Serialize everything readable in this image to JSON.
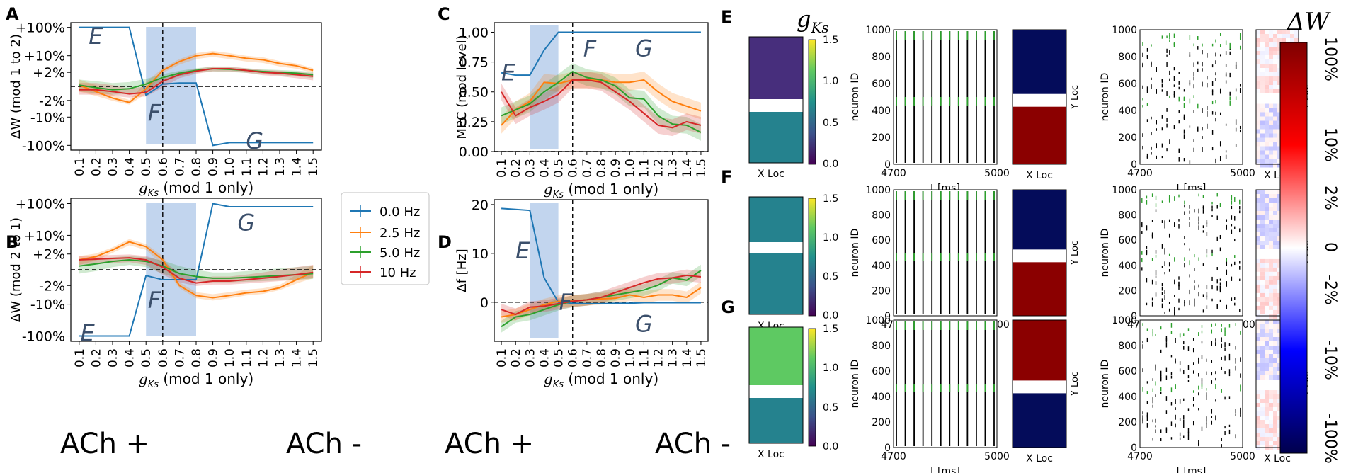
{
  "colors": {
    "s0": "#1f77b4",
    "s25": "#ff7f0e",
    "s5": "#2ca02c",
    "s10": "#d62728",
    "band": "#aec7e8",
    "ecolor": "#3b4f6b",
    "viridis_low": "#472e7c",
    "viridis_mid": "#25828e",
    "viridis_high": "#5ec962",
    "cold": "#040c5a",
    "hot": "#8b0000"
  },
  "legend": {
    "labels": [
      "0.0 Hz",
      "2.5 Hz",
      "5.0 Hz",
      "10 Hz"
    ]
  },
  "panels": {
    "A": "A",
    "B": "B",
    "C": "C",
    "D": "D",
    "E": "E",
    "F": "F",
    "G": "G"
  },
  "ach": {
    "plus": "ACh +",
    "minus": "ACh -"
  },
  "gks_label": {
    "sym": "g",
    "sub": "Ks",
    "tail": " (mod 1 only)"
  },
  "colorbar_gks": {
    "sym": "g",
    "sub": "Ks",
    "ticks": [
      "1.5",
      "1.0",
      "0.5",
      "0.0"
    ]
  },
  "colorbar_dw": {
    "title": "ΔW",
    "ticks": [
      "100%",
      "10%",
      "2%",
      "0",
      "-2%",
      "-10%",
      "-100%"
    ]
  },
  "raster": {
    "ylabel": "neuron ID",
    "xlabel": "t [ms]",
    "xticks": [
      "4700",
      "5000"
    ],
    "yticks": [
      "1000",
      "800",
      "600",
      "400",
      "200",
      "0"
    ]
  },
  "grid_labels": {
    "xloc": "X Loc",
    "yloc": "Y Loc"
  },
  "chart_data": [
    {
      "id": "A",
      "type": "line",
      "ylabel": "ΔW (mod 1 to 2)",
      "xlabel": "gKs (mod 1 only)",
      "yticks": [
        "+100%",
        "+10%",
        "+2%",
        "-2%",
        "-10%",
        "-100%"
      ],
      "x": [
        0.1,
        0.2,
        0.3,
        0.4,
        0.5,
        0.6,
        0.7,
        0.8,
        0.9,
        1.0,
        1.1,
        1.2,
        1.3,
        1.4,
        1.5
      ],
      "series": [
        {
          "name": "0.0 Hz",
          "values": [
            100,
            100,
            100,
            100,
            -1,
            0.2,
            0.3,
            0.3,
            -100,
            -80,
            -80,
            -80,
            -80,
            -80,
            -80
          ]
        },
        {
          "name": "2.5 Hz",
          "values": [
            0.1,
            -0.5,
            -1.5,
            -2.5,
            -0.2,
            2.5,
            6,
            10,
            12,
            10,
            8,
            7,
            5,
            4,
            2.5
          ]
        },
        {
          "name": "5.0 Hz",
          "values": [
            0.1,
            -0.1,
            -0.3,
            -0.2,
            0.2,
            1,
            1.8,
            2.5,
            3,
            2.8,
            2.5,
            2.2,
            2,
            1.8,
            1.5
          ]
        },
        {
          "name": "10 Hz",
          "values": [
            -0.3,
            -0.3,
            -0.5,
            -0.8,
            -0.6,
            0.5,
            1.5,
            2.3,
            3,
            3,
            2.5,
            2,
            1.8,
            1.5,
            1.2
          ]
        }
      ],
      "band": {
        "x0": 0.5,
        "x1": 0.8
      },
      "annotations": [
        "E",
        "F",
        "G"
      ]
    },
    {
      "id": "B",
      "type": "line",
      "ylabel": "ΔW (mod 2 to 1)",
      "xlabel": "gKs (mod 1 only)",
      "yticks": [
        "+100%",
        "+10%",
        "+2%",
        "-2%",
        "-10%",
        "-100%"
      ],
      "x": [
        0.1,
        0.2,
        0.3,
        0.4,
        0.5,
        0.6,
        0.7,
        0.8,
        0.9,
        1.0,
        1.1,
        1.2,
        1.3,
        1.4,
        1.5
      ],
      "series": [
        {
          "name": "0.0 Hz",
          "values": [
            -100,
            -100,
            -100,
            -100,
            -0.5,
            -1,
            -1,
            -1,
            100,
            80,
            80,
            80,
            80,
            80,
            80
          ]
        },
        {
          "name": "2.5 Hz",
          "values": [
            1,
            1.5,
            3,
            6,
            4,
            1,
            -2,
            -5,
            -6,
            -5,
            -4,
            -3.5,
            -2.5,
            -1,
            -0.2
          ]
        },
        {
          "name": "5.0 Hz",
          "values": [
            0.3,
            0.5,
            0.8,
            1,
            0.8,
            0.3,
            -0.3,
            -0.6,
            -0.8,
            -0.8,
            -0.7,
            -0.6,
            -0.5,
            -0.4,
            -0.3
          ]
        },
        {
          "name": "10 Hz",
          "values": [
            1,
            1.1,
            1.2,
            1.3,
            1,
            0.2,
            -0.8,
            -1.5,
            -1.2,
            -1.2,
            -1,
            -0.8,
            -0.6,
            -0.4,
            -0.2
          ]
        }
      ],
      "band": {
        "x0": 0.5,
        "x1": 0.8
      },
      "annotations": [
        "E",
        "F",
        "G"
      ]
    },
    {
      "id": "C",
      "type": "line",
      "ylabel": "MPC (mod level)",
      "xlabel": "gKs (mod 1 only)",
      "yticks": [
        "1.00",
        "0.75",
        "0.50",
        "0.25",
        "0.00"
      ],
      "ylim": [
        0,
        1.08
      ],
      "x": [
        0.1,
        0.2,
        0.3,
        0.4,
        0.5,
        0.6,
        0.7,
        0.8,
        0.9,
        1.0,
        1.1,
        1.2,
        1.3,
        1.4,
        1.5
      ],
      "series": [
        {
          "name": "0.0 Hz",
          "values": [
            0.66,
            0.64,
            0.64,
            0.85,
            1.0,
            1.0,
            1.0,
            1.0,
            1.0,
            1.0,
            1.0,
            1.0,
            1.0,
            1.0,
            1.0
          ]
        },
        {
          "name": "2.5 Hz",
          "values": [
            0.22,
            0.35,
            0.42,
            0.58,
            0.57,
            0.6,
            0.6,
            0.6,
            0.58,
            0.58,
            0.6,
            0.5,
            0.42,
            0.38,
            0.34
          ]
        },
        {
          "name": "5.0 Hz",
          "values": [
            0.3,
            0.35,
            0.4,
            0.5,
            0.58,
            0.67,
            0.62,
            0.6,
            0.55,
            0.45,
            0.44,
            0.3,
            0.23,
            0.22,
            0.16
          ]
        },
        {
          "name": "10 Hz",
          "values": [
            0.5,
            0.3,
            0.37,
            0.42,
            0.48,
            0.6,
            0.6,
            0.58,
            0.5,
            0.42,
            0.32,
            0.22,
            0.2,
            0.25,
            0.22
          ]
        }
      ],
      "band": {
        "x0": 0.3,
        "x1": 0.5
      },
      "annotations": [
        "E",
        "F",
        "G"
      ]
    },
    {
      "id": "D",
      "type": "line",
      "ylabel": "Δf [Hz]",
      "xlabel": "gKs (mod 1 only)",
      "yticks": [
        "20",
        "10",
        "0"
      ],
      "ylim": [
        -8,
        21
      ],
      "x": [
        0.1,
        0.2,
        0.3,
        0.4,
        0.5,
        0.6,
        0.7,
        0.8,
        0.9,
        1.0,
        1.1,
        1.2,
        1.3,
        1.4,
        1.5
      ],
      "series": [
        {
          "name": "0.0 Hz",
          "values": [
            19.2,
            19,
            18.8,
            5,
            0,
            -0.2,
            -0.3,
            -0.3,
            -0.2,
            -0.2,
            -0.1,
            -0.1,
            -0.1,
            -0.1,
            -0.1
          ]
        },
        {
          "name": "2.5 Hz",
          "values": [
            -3,
            -2.5,
            -1.5,
            -0.5,
            0.2,
            0.3,
            0.5,
            0.7,
            0.8,
            1.5,
            1,
            1.5,
            1.5,
            1,
            3
          ]
        },
        {
          "name": "5.0 Hz",
          "values": [
            -5,
            -3,
            -2.5,
            -1.5,
            -0.5,
            0.2,
            0.5,
            1,
            1.5,
            2,
            2.5,
            3.5,
            5,
            4.5,
            6.5
          ]
        },
        {
          "name": "10 Hz",
          "values": [
            -1.5,
            -2.5,
            -1,
            -0.8,
            -0.3,
            0.2,
            0.5,
            1,
            2,
            3,
            4,
            4.8,
            5,
            5.5,
            5.2
          ]
        }
      ],
      "band": {
        "x0": 0.3,
        "x1": 0.5
      },
      "annotations": [
        "E",
        "F",
        "G"
      ]
    }
  ]
}
